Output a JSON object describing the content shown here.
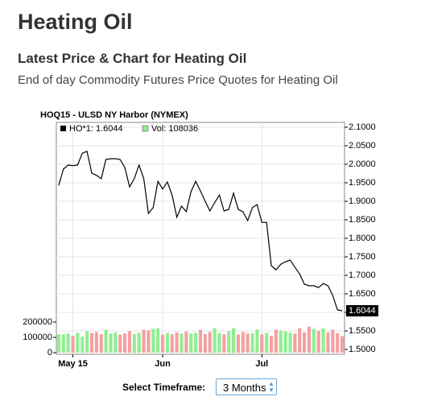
{
  "header": {
    "title": "Heating Oil",
    "subtitle": "Latest Price & Chart for Heating Oil",
    "description": "End of day Commodity Futures Price Quotes for Heating Oil"
  },
  "chart_data": {
    "type": "line",
    "title": "HOQ15 - ULSD NY Harbor (NYMEX)",
    "categories": [
      null,
      null,
      null,
      "May 15",
      null,
      null,
      null,
      null,
      null,
      null,
      null,
      null,
      null,
      null,
      null,
      null,
      null,
      null,
      null,
      null,
      null,
      null,
      "Jun",
      null,
      null,
      null,
      null,
      null,
      null,
      null,
      null,
      null,
      null,
      null,
      null,
      null,
      null,
      null,
      null,
      null,
      null,
      null,
      null,
      "Jul",
      null,
      null,
      null,
      null,
      null,
      null,
      null,
      null,
      null,
      null,
      null,
      null,
      null,
      null,
      null,
      null,
      null
    ],
    "series": [
      {
        "name": "HO*1: 1.6044",
        "color": "#000000",
        "values": [
          1.943,
          1.987,
          1.998,
          1.996,
          1.998,
          2.03,
          2.035,
          1.976,
          1.97,
          1.961,
          2.013,
          2.015,
          2.015,
          2.013,
          1.991,
          1.939,
          1.961,
          1.998,
          1.961,
          1.867,
          1.883,
          1.954,
          1.933,
          1.952,
          1.917,
          1.857,
          1.887,
          1.872,
          1.926,
          1.954,
          1.928,
          1.9,
          1.874,
          1.896,
          1.917,
          1.874,
          1.878,
          1.922,
          1.878,
          1.872,
          1.848,
          1.883,
          1.891,
          1.843,
          1.843,
          1.726,
          1.715,
          1.73,
          1.737,
          1.741,
          1.722,
          1.704,
          1.676,
          1.672,
          1.672,
          1.667,
          1.678,
          1.672,
          1.646,
          1.607,
          1.6044
        ]
      },
      {
        "name": "Vol: 108036",
        "type": "bar",
        "axis": "y2",
        "color": "#90ee90",
        "down_color": "#f4a0a0",
        "values": [
          120000,
          118000,
          125000,
          110000,
          130000,
          105000,
          140000,
          128000,
          135000,
          120000,
          150000,
          125000,
          132000,
          118000,
          126000,
          140000,
          122000,
          130000,
          150000,
          145000,
          155000,
          160000,
          118000,
          128000,
          120000,
          132000,
          125000,
          138000,
          125000,
          130000,
          150000,
          122000,
          135000,
          160000,
          128000,
          120000,
          140000,
          160000,
          118000,
          135000,
          125000,
          128000,
          152000,
          120000,
          130000,
          110000,
          150000,
          145000,
          138000,
          130000,
          125000,
          160000,
          132000,
          170000,
          155000,
          142000,
          158000,
          132000,
          150000,
          128000,
          108036
        ]
      }
    ],
    "ylim": [
      1.487,
      2.113
    ],
    "yticks": [
      {
        "value": 2.1,
        "label": "2.1000"
      },
      {
        "value": 2.05,
        "label": "2.0500"
      },
      {
        "value": 2.0,
        "label": "2.0000"
      },
      {
        "value": 1.95,
        "label": "1.9500"
      },
      {
        "value": 1.9,
        "label": "1.9000"
      },
      {
        "value": 1.85,
        "label": "1.8500"
      },
      {
        "value": 1.8,
        "label": "1.8000"
      },
      {
        "value": 1.75,
        "label": "1.7500"
      },
      {
        "value": 1.7,
        "label": "1.7000"
      },
      {
        "value": 1.65,
        "label": "1.6500"
      },
      {
        "value": 1.6,
        "label": "1.6000"
      },
      {
        "value": 1.55,
        "label": "1.5500"
      },
      {
        "value": 1.5,
        "label": "1.5000"
      }
    ],
    "y2lim": [
      0,
      200000
    ],
    "y2ticks": [
      0,
      100000,
      200000
    ],
    "grid": true
  },
  "controls": {
    "label": "Select Timeframe:",
    "selected": "3 Months"
  }
}
